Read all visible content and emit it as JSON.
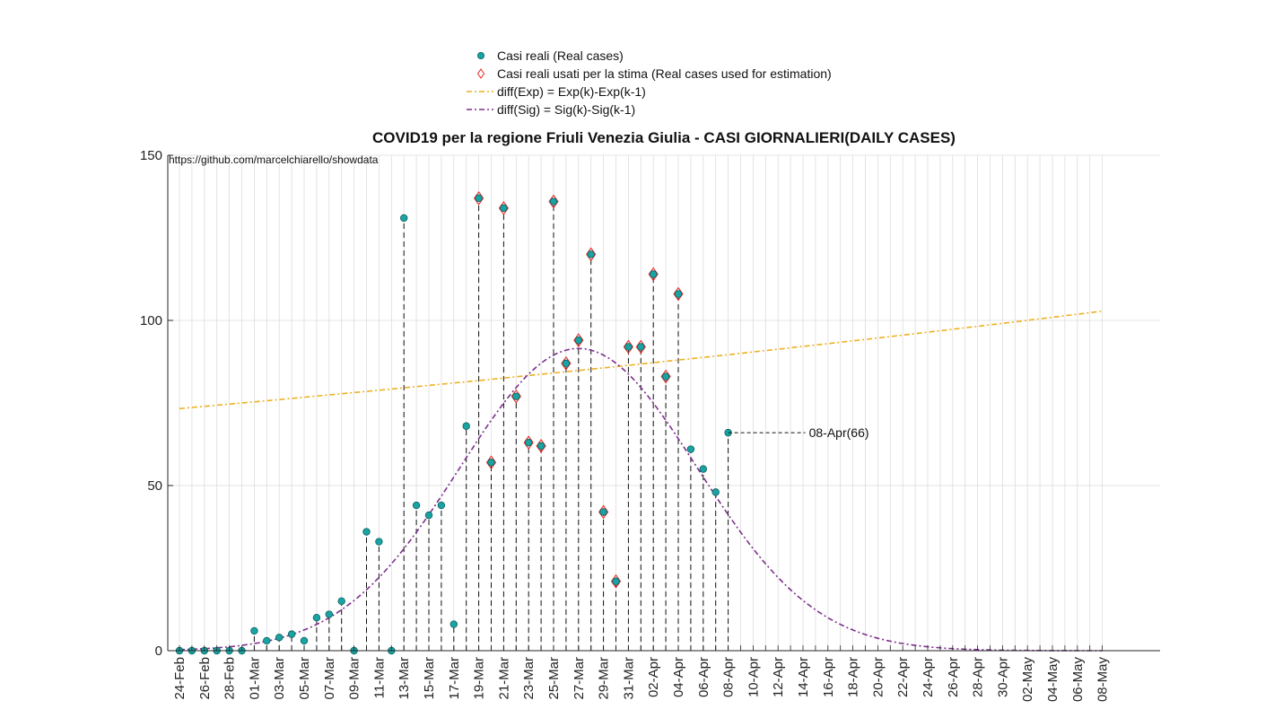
{
  "chart_data": {
    "type": "scatter",
    "title": "COVID19 per la regione Friuli Venezia Giulia - CASI GIORNALIERI(DAILY CASES)",
    "source_text": "https://github.com/marcelchiarello/showdata",
    "ylim": [
      0,
      150
    ],
    "yticks": [
      "0",
      "50",
      "100",
      "150"
    ],
    "grid": true,
    "legend_position": "top-center",
    "x_dates": [
      "24-Feb",
      "25-Feb",
      "26-Feb",
      "27-Feb",
      "28-Feb",
      "29-Feb",
      "01-Mar",
      "02-Mar",
      "03-Mar",
      "04-Mar",
      "05-Mar",
      "06-Mar",
      "07-Mar",
      "08-Mar",
      "09-Mar",
      "10-Mar",
      "11-Mar",
      "12-Mar",
      "13-Mar",
      "14-Mar",
      "15-Mar",
      "16-Mar",
      "17-Mar",
      "18-Mar",
      "19-Mar",
      "20-Mar",
      "21-Mar",
      "22-Mar",
      "23-Mar",
      "24-Mar",
      "25-Mar",
      "26-Mar",
      "27-Mar",
      "28-Mar",
      "29-Mar",
      "30-Mar",
      "31-Mar",
      "01-Apr",
      "02-Apr",
      "03-Apr",
      "04-Apr",
      "05-Apr",
      "06-Apr",
      "07-Apr",
      "08-Apr",
      "09-Apr",
      "10-Apr",
      "11-Apr",
      "12-Apr",
      "13-Apr",
      "14-Apr",
      "15-Apr",
      "16-Apr",
      "17-Apr",
      "18-Apr",
      "19-Apr",
      "20-Apr",
      "21-Apr",
      "22-Apr",
      "23-Apr",
      "24-Apr",
      "25-Apr",
      "26-Apr",
      "27-Apr",
      "28-Apr",
      "29-Apr",
      "30-Apr",
      "01-May",
      "02-May",
      "03-May",
      "04-May",
      "05-May",
      "06-May",
      "07-May",
      "08-May"
    ],
    "x_tick_labels": [
      "24-Feb",
      "26-Feb",
      "28-Feb",
      "01-Mar",
      "03-Mar",
      "05-Mar",
      "07-Mar",
      "09-Mar",
      "11-Mar",
      "13-Mar",
      "15-Mar",
      "17-Mar",
      "19-Mar",
      "21-Mar",
      "23-Mar",
      "25-Mar",
      "27-Mar",
      "29-Mar",
      "31-Mar",
      "02-Apr",
      "04-Apr",
      "06-Apr",
      "08-Apr",
      "10-Apr",
      "12-Apr",
      "14-Apr",
      "16-Apr",
      "18-Apr",
      "20-Apr",
      "22-Apr",
      "24-Apr",
      "26-Apr",
      "28-Apr",
      "30-Apr",
      "02-May",
      "04-May",
      "06-May",
      "08-May"
    ],
    "series": [
      {
        "name": "Casi reali (Real cases)",
        "kind": "points",
        "color": "#1aa3a3",
        "values": [
          0,
          0,
          0,
          0,
          0,
          0,
          6,
          3,
          4,
          5,
          3,
          10,
          11,
          15,
          0,
          36,
          33,
          0,
          131,
          44,
          41,
          44,
          8,
          68,
          137,
          57,
          134,
          77,
          63,
          62,
          136,
          87,
          94,
          120,
          42,
          21,
          92,
          92,
          114,
          83,
          108,
          61,
          55,
          48,
          66
        ]
      },
      {
        "name": "Casi reali usati per la stima (Real cases used for estimation)",
        "kind": "diamonds",
        "color": "#e8231f",
        "x_start": "19-Mar",
        "values": [
          137,
          57,
          134,
          77,
          63,
          62,
          136,
          87,
          94,
          120,
          42,
          21,
          92,
          92,
          114,
          83,
          108
        ]
      },
      {
        "name": "diff(Exp) = Exp(k)-Exp(k-1)",
        "kind": "curve",
        "color": "#edb120",
        "x_range": [
          "24-Feb",
          "08-May"
        ],
        "y_start": 73.3,
        "y_end": 102.8
      },
      {
        "name": "diff(Sig) = Sig(k)-Sig(k-1)",
        "kind": "curve",
        "color": "#7e2f8e",
        "peak_date": "27-Mar",
        "peak_value": 91.5,
        "sigma_days": 9.5
      }
    ],
    "annotation": {
      "text": "08-Apr(66)",
      "date": "08-Apr",
      "value": 66
    }
  }
}
